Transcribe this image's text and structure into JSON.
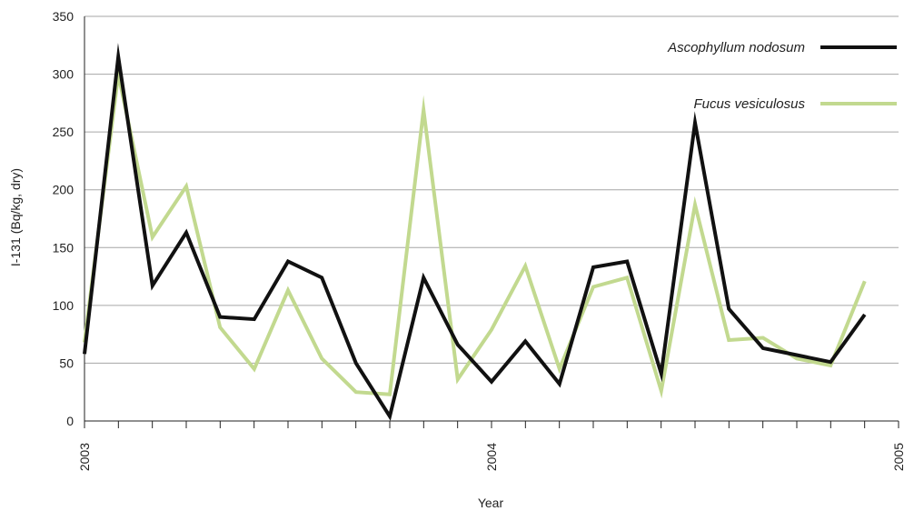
{
  "chart_data": {
    "type": "line",
    "title": "",
    "xlabel": "Year",
    "ylabel": "I-131 (Bq/kg, dry)",
    "ylim": [
      0,
      350
    ],
    "yticks": [
      0,
      50,
      100,
      150,
      200,
      250,
      300,
      350
    ],
    "xlim": [
      2003.0,
      2005.0
    ],
    "xticks": [
      {
        "value": 2003,
        "label": "2003"
      },
      {
        "value": 2004,
        "label": "2004"
      },
      {
        "value": 2005,
        "label": "2005"
      }
    ],
    "minor_tick_step": 0.0833333,
    "grid": "horizontal",
    "legend_position": "top-right",
    "series": [
      {
        "name": "Ascophyllum nodosum",
        "color": "#111111",
        "points": [
          [
            2003.0,
            58
          ],
          [
            2003.083,
            315
          ],
          [
            2003.167,
            117
          ],
          [
            2003.25,
            163
          ],
          [
            2003.333,
            90
          ],
          [
            2003.417,
            88
          ],
          [
            2003.5,
            138
          ],
          [
            2003.583,
            124
          ],
          [
            2003.667,
            50
          ],
          [
            2003.75,
            4
          ],
          [
            2003.833,
            124
          ],
          [
            2003.917,
            66
          ],
          [
            2004.0,
            34
          ],
          [
            2004.083,
            69
          ],
          [
            2004.167,
            32
          ],
          [
            2004.25,
            133
          ],
          [
            2004.333,
            138
          ],
          [
            2004.417,
            41
          ],
          [
            2004.5,
            258
          ],
          [
            2004.583,
            97
          ],
          [
            2004.667,
            63
          ],
          [
            2004.75,
            57
          ],
          [
            2004.833,
            51
          ],
          [
            2004.917,
            92
          ]
        ]
      },
      {
        "name": "Fucus vesiculosus",
        "color": "#c2d98f",
        "points": [
          [
            2003.0,
            68
          ],
          [
            2003.083,
            300
          ],
          [
            2003.167,
            159
          ],
          [
            2003.25,
            203
          ],
          [
            2003.333,
            81
          ],
          [
            2003.417,
            45
          ],
          [
            2003.5,
            113
          ],
          [
            2003.583,
            54
          ],
          [
            2003.667,
            25
          ],
          [
            2003.75,
            23
          ],
          [
            2003.833,
            269
          ],
          [
            2003.917,
            36
          ],
          [
            2004.0,
            79
          ],
          [
            2004.083,
            134
          ],
          [
            2004.167,
            45
          ],
          [
            2004.25,
            116
          ],
          [
            2004.333,
            124
          ],
          [
            2004.417,
            26
          ],
          [
            2004.5,
            187
          ],
          [
            2004.583,
            70
          ],
          [
            2004.667,
            72
          ],
          [
            2004.75,
            54
          ],
          [
            2004.833,
            48
          ],
          [
            2004.917,
            121
          ]
        ]
      }
    ]
  }
}
